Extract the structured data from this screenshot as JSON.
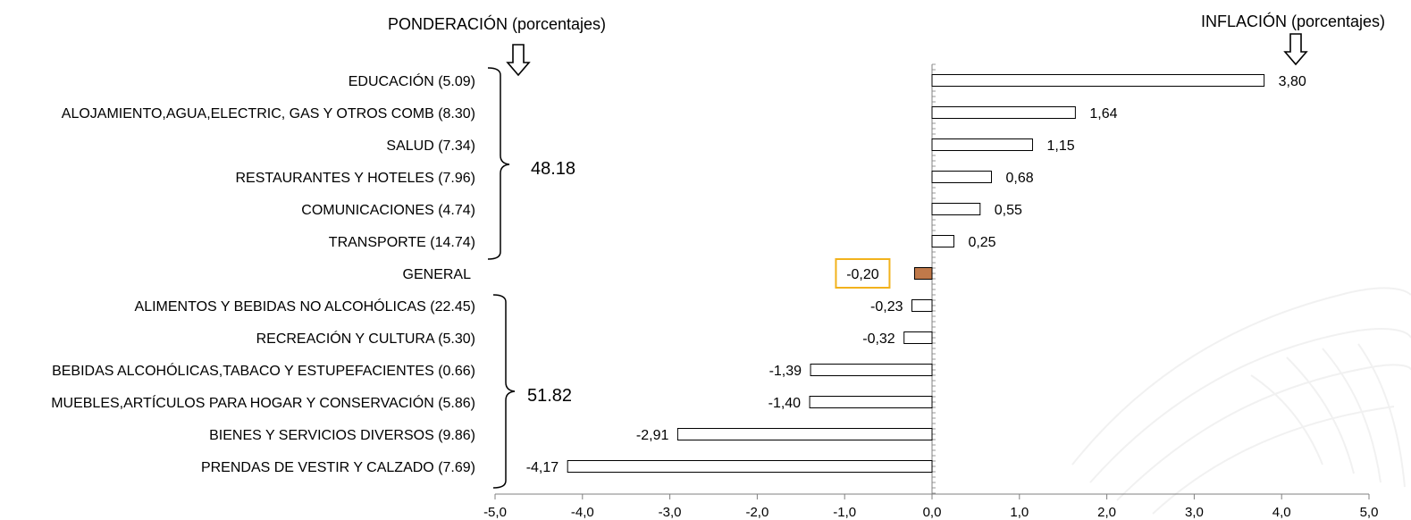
{
  "header": {
    "left_title": "PONDERACIÓN (porcentajes)",
    "right_title": "INFLACIÓN (porcentajes)"
  },
  "groups": [
    {
      "total": "48.18"
    },
    {
      "total": "51.82"
    }
  ],
  "chart_data": {
    "type": "bar",
    "orientation": "horizontal",
    "title": "",
    "xlabel": "",
    "ylabel": "",
    "xlim": [
      -5,
      5
    ],
    "x_ticks": [
      "-5,0",
      "-4,0",
      "-3,0",
      "-2,0",
      "-1,0",
      "0,0",
      "1,0",
      "2,0",
      "3,0",
      "4,0",
      "5,0"
    ],
    "grid": false,
    "categories": [
      "EDUCACIÓN (5.09)",
      "ALOJAMIENTO,AGUA,ELECTRIC, GAS Y OTROS COMB (8.30)",
      "SALUD (7.34)",
      "RESTAURANTES Y HOTELES (7.96)",
      "COMUNICACIONES (4.74)",
      "TRANSPORTE (14.74)",
      "GENERAL",
      "ALIMENTOS Y BEBIDAS NO ALCOHÓLICAS (22.45)",
      "RECREACIÓN Y CULTURA (5.30)",
      "BEBIDAS ALCOHÓLICAS,TABACO Y ESTUPEFACIENTES (0.66)",
      "MUEBLES,ARTÍCULOS PARA HOGAR Y CONSERVACIÓN (5.86)",
      "BIENES Y SERVICIOS DIVERSOS (9.86)",
      "PRENDAS DE VESTIR Y CALZADO (7.69)"
    ],
    "values": [
      3.8,
      1.64,
      1.15,
      0.68,
      0.55,
      0.25,
      -0.2,
      -0.23,
      -0.32,
      -1.39,
      -1.4,
      -2.91,
      -4.17
    ],
    "value_labels": [
      "3,80",
      "1,64",
      "1,15",
      "0,68",
      "0,55",
      "0,25",
      "-0,20",
      "-0,23",
      "-0,32",
      "-1,39",
      "-1,40",
      "-2,91",
      "-4,17"
    ],
    "highlight_index": 6,
    "colors": {
      "bar_fill": "#ffffff",
      "bar_stroke": "#000000",
      "highlight_fill": "#c0794a",
      "highlight_box": "#f2b21c",
      "axis": "#808080"
    }
  }
}
